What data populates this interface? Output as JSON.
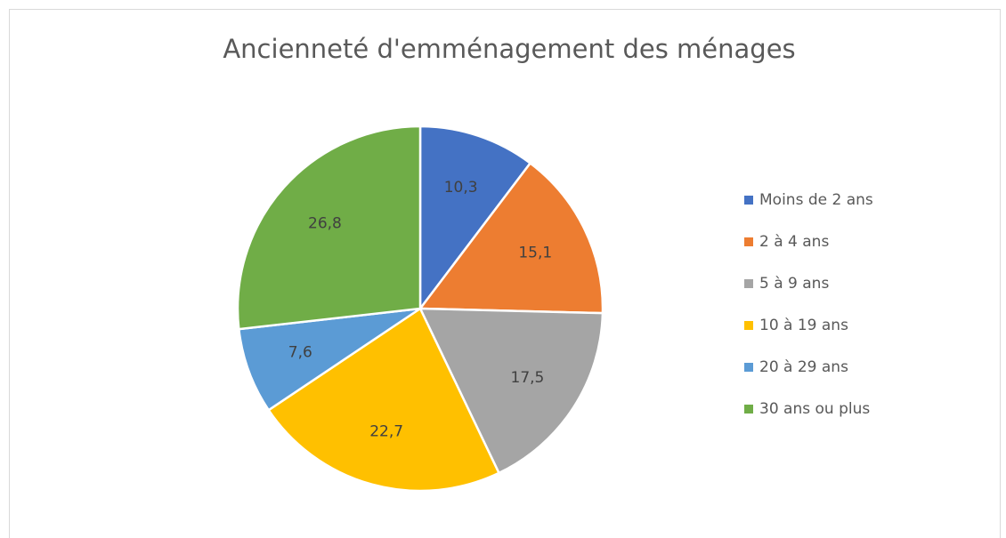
{
  "chart_data": {
    "type": "pie",
    "title": "Ancienneté d'emménagement des ménages",
    "categories": [
      "Moins de 2 ans",
      "2 à 4 ans",
      "5 à 9 ans",
      "10 à 19 ans",
      "20 à 29 ans",
      "30 ans ou plus"
    ],
    "values": [
      10.3,
      15.1,
      17.5,
      22.7,
      7.6,
      26.8
    ],
    "value_labels": [
      "10,3",
      "15,1",
      "17,5",
      "22,7",
      "7,6",
      "26,8"
    ],
    "colors": [
      "#4472c4",
      "#ed7d31",
      "#a5a5a5",
      "#ffc000",
      "#5b9bd5",
      "#70ad47"
    ],
    "legend": "right"
  }
}
